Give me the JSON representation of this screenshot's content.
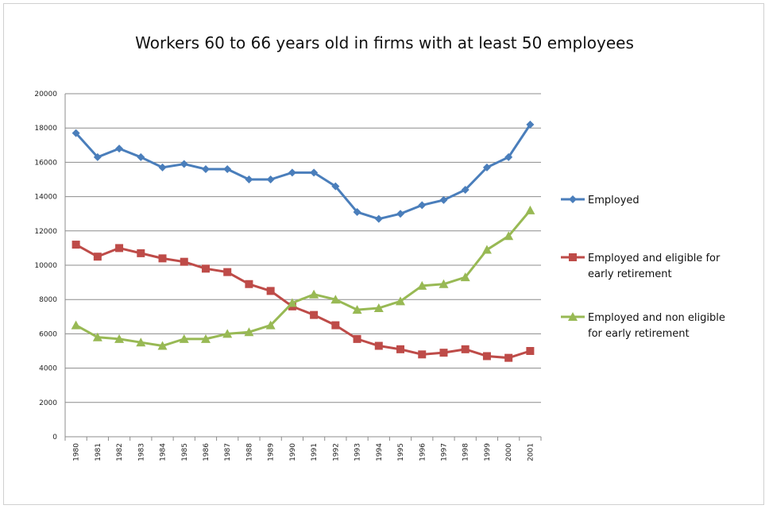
{
  "chart_data": {
    "type": "line",
    "title": "Workers 60 to 66 years old in firms with at least 50 employees",
    "xlabel": "",
    "ylabel": "",
    "ylim": [
      0,
      20000
    ],
    "yticks": [
      "0",
      "2000",
      "4000",
      "6000",
      "8000",
      "10000",
      "12000",
      "14000",
      "16000",
      "18000",
      "20000"
    ],
    "categories": [
      "1980",
      "1981",
      "1982",
      "1983",
      "1984",
      "1985",
      "1986",
      "1987",
      "1988",
      "1989",
      "1990",
      "1991",
      "1992",
      "1993",
      "1994",
      "1995",
      "1996",
      "1997",
      "1998",
      "1999",
      "2000",
      "2001"
    ],
    "grid": true,
    "legend_position": "right",
    "series": [
      {
        "name": "Employed",
        "color": "#4a7ebb",
        "marker": "diamond",
        "values": [
          17700,
          16300,
          16800,
          16300,
          15700,
          15900,
          15600,
          15600,
          15000,
          15000,
          15400,
          15400,
          14600,
          13100,
          12700,
          13000,
          13500,
          13800,
          14400,
          15700,
          16300,
          18200
        ]
      },
      {
        "name": "Employed and eligible for early retirement",
        "color": "#be4b48",
        "marker": "square",
        "values": [
          11200,
          10500,
          11000,
          10700,
          10400,
          10200,
          9800,
          9600,
          8900,
          8500,
          7600,
          7100,
          6500,
          5700,
          5300,
          5100,
          4800,
          4900,
          5100,
          4700,
          4600,
          5000
        ]
      },
      {
        "name": "Employed and non eligible for early retirement",
        "color": "#98b954",
        "marker": "triangle",
        "values": [
          6500,
          5800,
          5700,
          5500,
          5300,
          5700,
          5700,
          6000,
          6100,
          6500,
          7800,
          8300,
          8000,
          7400,
          7500,
          7900,
          8800,
          8900,
          9300,
          10900,
          11700,
          13200
        ]
      }
    ]
  }
}
